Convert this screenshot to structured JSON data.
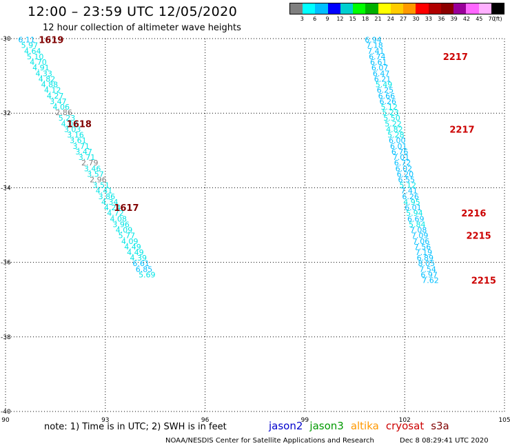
{
  "header": {
    "title": "12:00 – 23:59 UTC 12/05/2020",
    "subtitle": "12 hour collection of altimeter wave heights"
  },
  "legend": {
    "colors": [
      "#7f7f7f",
      "#00ffff",
      "#00bfff",
      "#0000ff",
      "#00cfcf",
      "#00ff00",
      "#00b000",
      "#ffff00",
      "#ffcc00",
      "#ff9900",
      "#ff0000",
      "#b00000",
      "#8b0000",
      "#990099",
      "#ff66ff",
      "#ffb0ff",
      "#000000"
    ],
    "labels": [
      "3",
      "6",
      "9",
      "12",
      "15",
      "18",
      "21",
      "24",
      "27",
      "30",
      "33",
      "36",
      "39",
      "42",
      "45",
      "70",
      "(ft)"
    ]
  },
  "chart_data": {
    "type": "scatter",
    "xlim": [
      90,
      105
    ],
    "ylim": [
      -40,
      -30
    ],
    "x_ticks": [
      "90",
      "93",
      "96",
      "99",
      "102",
      "105"
    ],
    "y_ticks": [
      "-30",
      "-32",
      "-34",
      "-36",
      "-38",
      "-40"
    ],
    "series": [
      {
        "track": "west",
        "points": [
          {
            "x": 90.38,
            "y": -30.03,
            "v": "6.11"
          },
          {
            "x": 90.47,
            "y": -30.18,
            "v": "5.97"
          },
          {
            "x": 90.56,
            "y": -30.33,
            "v": "4.64"
          },
          {
            "x": 90.64,
            "y": -30.48,
            "v": "5.10"
          },
          {
            "x": 90.73,
            "y": -30.63,
            "v": "4.70"
          },
          {
            "x": 90.81,
            "y": -30.78,
            "v": "4.91"
          },
          {
            "x": 90.9,
            "y": -30.93,
            "v": "4.33"
          },
          {
            "x": 90.99,
            "y": -31.08,
            "v": "4.82"
          },
          {
            "x": 91.07,
            "y": -31.23,
            "v": "4.88"
          },
          {
            "x": 91.16,
            "y": -31.38,
            "v": "4.12"
          },
          {
            "x": 91.24,
            "y": -31.53,
            "v": "4.27"
          },
          {
            "x": 91.33,
            "y": -31.68,
            "v": "3.47"
          },
          {
            "x": 91.42,
            "y": -31.83,
            "v": "4.06"
          },
          {
            "x": 91.5,
            "y": -31.98,
            "v": "2.86"
          },
          {
            "x": 91.59,
            "y": -32.13,
            "v": "5.23"
          },
          {
            "x": 91.67,
            "y": -32.28,
            "v": "4.07"
          },
          {
            "x": 91.76,
            "y": -32.43,
            "v": "3.03"
          },
          {
            "x": 91.85,
            "y": -32.58,
            "v": "3.16"
          },
          {
            "x": 91.93,
            "y": -32.73,
            "v": "3.61"
          },
          {
            "x": 92.02,
            "y": -32.88,
            "v": "3.71"
          },
          {
            "x": 92.1,
            "y": -33.03,
            "v": "3.47"
          },
          {
            "x": 92.19,
            "y": -33.18,
            "v": "3.71"
          },
          {
            "x": 92.28,
            "y": -33.33,
            "v": "2.79"
          },
          {
            "x": 92.36,
            "y": -33.48,
            "v": "3.46"
          },
          {
            "x": 92.45,
            "y": -33.63,
            "v": "3.57"
          },
          {
            "x": 92.53,
            "y": -33.78,
            "v": "2.96"
          },
          {
            "x": 92.62,
            "y": -33.93,
            "v": "3.51"
          },
          {
            "x": 92.71,
            "y": -34.08,
            "v": "4.41"
          },
          {
            "x": 92.79,
            "y": -34.23,
            "v": "3.86"
          },
          {
            "x": 92.88,
            "y": -34.38,
            "v": "4.34"
          },
          {
            "x": 92.96,
            "y": -34.53,
            "v": "4.24"
          },
          {
            "x": 93.05,
            "y": -34.68,
            "v": "4.72"
          },
          {
            "x": 93.14,
            "y": -34.83,
            "v": "4.08"
          },
          {
            "x": 93.22,
            "y": -34.98,
            "v": "3.96"
          },
          {
            "x": 93.31,
            "y": -35.13,
            "v": "4.09"
          },
          {
            "x": 93.39,
            "y": -35.28,
            "v": "5.77"
          },
          {
            "x": 93.48,
            "y": -35.43,
            "v": "4.09"
          },
          {
            "x": 93.57,
            "y": -35.58,
            "v": "4.49"
          },
          {
            "x": 93.65,
            "y": -35.73,
            "v": "4.49"
          },
          {
            "x": 93.74,
            "y": -35.88,
            "v": "4.39"
          },
          {
            "x": 93.82,
            "y": -36.03,
            "v": "6.61"
          },
          {
            "x": 93.91,
            "y": -36.18,
            "v": "6.85"
          },
          {
            "x": 94.0,
            "y": -36.33,
            "v": "5.69"
          }
        ]
      },
      {
        "track": "east",
        "points": [
          {
            "x": 100.8,
            "y": -30.03,
            "v": "6.94"
          },
          {
            "x": 100.84,
            "y": -30.18,
            "v": "7.18"
          },
          {
            "x": 100.88,
            "y": -30.33,
            "v": "7.41"
          },
          {
            "x": 100.92,
            "y": -30.48,
            "v": "6.74"
          },
          {
            "x": 100.96,
            "y": -30.63,
            "v": "6.61"
          },
          {
            "x": 101.0,
            "y": -30.78,
            "v": "6.07"
          },
          {
            "x": 101.04,
            "y": -30.93,
            "v": "6.47"
          },
          {
            "x": 101.08,
            "y": -31.08,
            "v": "6.21"
          },
          {
            "x": 101.12,
            "y": -31.23,
            "v": "5.49"
          },
          {
            "x": 101.16,
            "y": -31.38,
            "v": "6.25"
          },
          {
            "x": 101.2,
            "y": -31.53,
            "v": "6.66"
          },
          {
            "x": 101.24,
            "y": -31.68,
            "v": "6.26"
          },
          {
            "x": 101.28,
            "y": -31.83,
            "v": "5.12"
          },
          {
            "x": 101.32,
            "y": -31.98,
            "v": "5.23"
          },
          {
            "x": 101.36,
            "y": -32.13,
            "v": "5.50"
          },
          {
            "x": 101.4,
            "y": -32.28,
            "v": "5.22"
          },
          {
            "x": 101.44,
            "y": -32.43,
            "v": "4.82"
          },
          {
            "x": 101.48,
            "y": -32.58,
            "v": "5.28"
          },
          {
            "x": 101.52,
            "y": -32.73,
            "v": "6.00"
          },
          {
            "x": 101.56,
            "y": -32.88,
            "v": "6.01"
          },
          {
            "x": 101.6,
            "y": -33.03,
            "v": "6.76"
          },
          {
            "x": 101.64,
            "y": -33.18,
            "v": "7.01"
          },
          {
            "x": 101.68,
            "y": -33.33,
            "v": "6.72"
          },
          {
            "x": 101.72,
            "y": -33.48,
            "v": "6.02"
          },
          {
            "x": 101.76,
            "y": -33.63,
            "v": "6.20"
          },
          {
            "x": 101.8,
            "y": -33.78,
            "v": "6.55"
          },
          {
            "x": 101.84,
            "y": -33.93,
            "v": "5.12"
          },
          {
            "x": 101.88,
            "y": -34.08,
            "v": "7.41"
          },
          {
            "x": 101.92,
            "y": -34.23,
            "v": "6.26"
          },
          {
            "x": 101.96,
            "y": -34.38,
            "v": "4.95"
          },
          {
            "x": 102.0,
            "y": -34.53,
            "v": "6.01"
          },
          {
            "x": 102.04,
            "y": -34.68,
            "v": "5.94"
          },
          {
            "x": 102.08,
            "y": -34.83,
            "v": "6.69"
          },
          {
            "x": 102.12,
            "y": -34.98,
            "v": "5.84"
          },
          {
            "x": 102.16,
            "y": -35.13,
            "v": "7.08"
          },
          {
            "x": 102.2,
            "y": -35.28,
            "v": "7.09"
          },
          {
            "x": 102.24,
            "y": -35.43,
            "v": "7.06"
          },
          {
            "x": 102.28,
            "y": -35.58,
            "v": "7.56"
          },
          {
            "x": 102.32,
            "y": -35.73,
            "v": "7.19"
          },
          {
            "x": 102.36,
            "y": -35.88,
            "v": "6.89"
          },
          {
            "x": 102.4,
            "y": -36.03,
            "v": "8.05"
          },
          {
            "x": 102.44,
            "y": -36.18,
            "v": "7.54"
          },
          {
            "x": 102.48,
            "y": -36.33,
            "v": "6.97"
          },
          {
            "x": 102.52,
            "y": -36.48,
            "v": "7.62"
          }
        ]
      }
    ],
    "time_labels": [
      {
        "x": 91.0,
        "y": -30.03,
        "text": "1619",
        "color": "#800000"
      },
      {
        "x": 91.84,
        "y": -32.28,
        "text": "1618",
        "color": "#800000"
      },
      {
        "x": 93.26,
        "y": -34.53,
        "text": "1617",
        "color": "#800000"
      },
      {
        "x": 103.15,
        "y": -30.48,
        "text": "2217",
        "color": "#cc0000"
      },
      {
        "x": 103.35,
        "y": -32.43,
        "text": "2217",
        "color": "#cc0000"
      },
      {
        "x": 103.7,
        "y": -34.68,
        "text": "2216",
        "color": "#cc0000"
      },
      {
        "x": 103.85,
        "y": -35.28,
        "text": "2215",
        "color": "#cc0000"
      },
      {
        "x": 104.0,
        "y": -36.48,
        "text": "2215",
        "color": "#cc0000"
      }
    ]
  },
  "footer": {
    "note": "note: 1) Time is in UTC; 2) SWH is in feet",
    "satellites": [
      {
        "name": "jason2",
        "color": "#0000cc"
      },
      {
        "name": "jason3",
        "color": "#009900"
      },
      {
        "name": "altika",
        "color": "#ff9900"
      },
      {
        "name": "cryosat",
        "color": "#cc0000"
      },
      {
        "name": "s3a",
        "color": "#800000"
      }
    ],
    "credit": "NOAA/NESDIS Center for Satellite Applications and Research",
    "timestamp": "Dec  8 08:29:41 UTC 2020"
  }
}
